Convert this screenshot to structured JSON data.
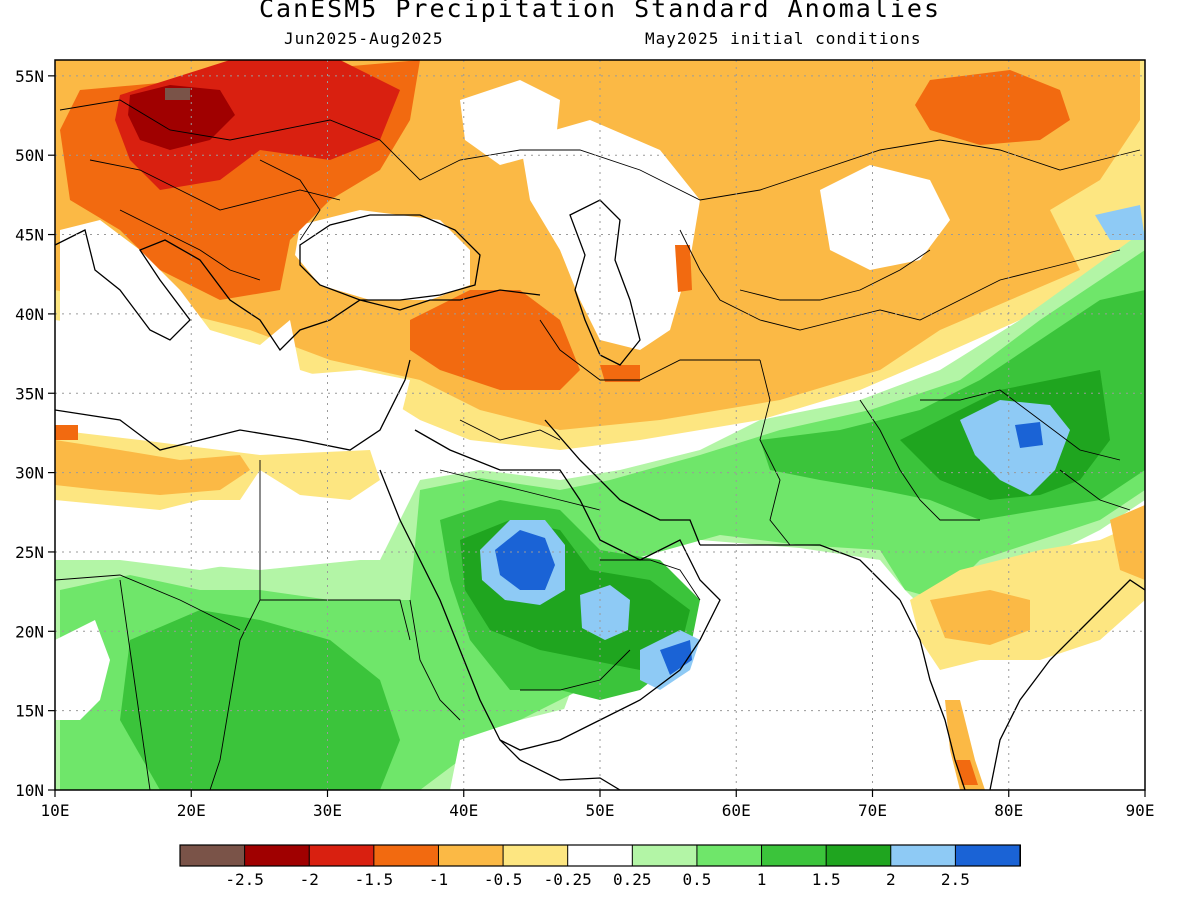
{
  "header": {
    "title": "CanESM5 Precipitation Standard Anomalies",
    "period": "Jun2025-Aug2025",
    "init": "May2025 initial conditions"
  },
  "map": {
    "lon_range": [
      10,
      90
    ],
    "lat_range": [
      10,
      56
    ],
    "lat_labels": [
      "10N",
      "15N",
      "20N",
      "25N",
      "30N",
      "35N",
      "40N",
      "45N",
      "50N",
      "55N"
    ],
    "lon_labels": [
      "10E",
      "20E",
      "30E",
      "40E",
      "50E",
      "60E",
      "70E",
      "80E",
      "90E"
    ]
  },
  "colorbar": {
    "colors": [
      "#7a5348",
      "#a00000",
      "#d92010",
      "#f26a10",
      "#fbb945",
      "#fde681",
      "#ffffff",
      "#b3f5a6",
      "#6fe66a",
      "#3bc43b",
      "#1fa51f",
      "#8ecaf5",
      "#1a63d6"
    ],
    "labels": [
      "-2.5",
      "-2",
      "-1.5",
      "-1",
      "-0.5",
      "-0.25",
      "0.25",
      "0.5",
      "1",
      "1.5",
      "2",
      "2.5"
    ]
  }
}
